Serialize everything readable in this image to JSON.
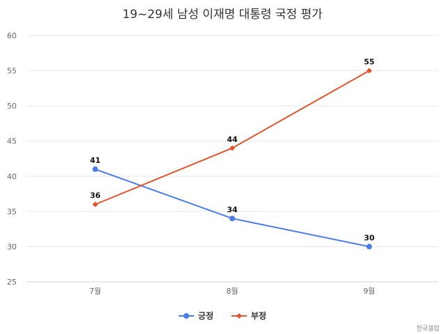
{
  "title": "19~29세 남성 이재명 대통령 국정 평가",
  "source": "한국갤럽",
  "colors": {
    "positive": "#4A7BE8",
    "negative": "#E0542A",
    "grid": "#e6e6e6",
    "axis": "#ccd6eb"
  },
  "legend": [
    {
      "label": "긍정",
      "color": "#4A7BE8",
      "marker": "circle"
    },
    {
      "label": "부정",
      "color": "#E0542A",
      "marker": "diamond"
    }
  ],
  "chart_data": {
    "type": "line",
    "title": "19~29세 남성 이재명 대통령 국정 평가",
    "categories": [
      "7월",
      "8월",
      "9월"
    ],
    "series": [
      {
        "name": "긍정",
        "values": [
          41,
          34,
          30
        ],
        "color": "#4A7BE8",
        "marker": "circle"
      },
      {
        "name": "부정",
        "values": [
          36,
          44,
          55
        ],
        "color": "#E0542A",
        "marker": "diamond"
      }
    ],
    "xlabel": "",
    "ylabel": "",
    "ylim": [
      25,
      60
    ],
    "yticks": [
      25,
      30,
      35,
      40,
      45,
      50,
      55,
      60
    ],
    "grid": true,
    "legend_position": "bottom",
    "data_labels": true
  }
}
